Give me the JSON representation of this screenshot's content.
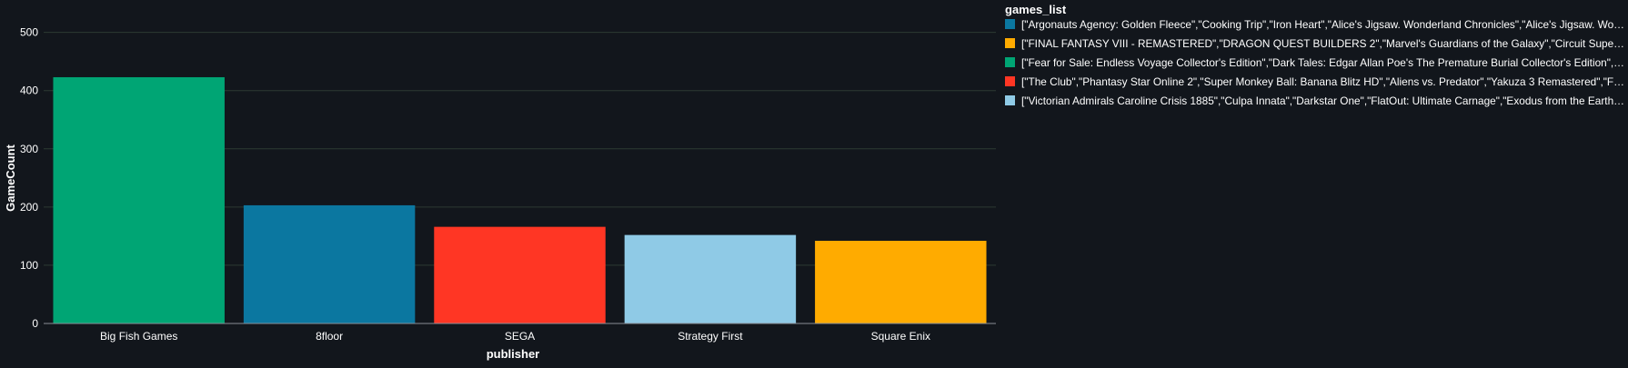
{
  "chart_data": {
    "type": "bar",
    "xlabel": "publisher",
    "ylabel": "GameCount",
    "ylim": [
      0,
      540
    ],
    "yticks": [
      0,
      100,
      200,
      300,
      400,
      500
    ],
    "grid": true,
    "categories": [
      "Big Fish Games",
      "8floor",
      "SEGA",
      "Strategy First",
      "Square Enix"
    ],
    "values": [
      423,
      203,
      166,
      152,
      142
    ],
    "bar_colors": [
      "#00a574",
      "#0b77a0",
      "#ff3624",
      "#8fcae6",
      "#ffab00"
    ],
    "legend": {
      "title": "games_list",
      "position": "top-right",
      "entries": [
        {
          "label": "[\"Argonauts Agency: Golden Fleece\",\"Cooking Trip\",\"Iron Heart\",\"Alice's Jigsaw. Wonderland Chronicles\",\"Alice's Jigsaw. Wo…",
          "color": "#0b77a0"
        },
        {
          "label": "[\"FINAL FANTASY VIII - REMASTERED\",\"DRAGON QUEST BUILDERS 2\",\"Marvel's Guardians of the Galaxy\",\"Circuit Supe…",
          "color": "#ffab00"
        },
        {
          "label": "[\"Fear for Sale: Endless Voyage Collector's Edition\",\"Dark Tales: Edgar Allan Poe's The Premature Burial Collector's Edition\",…",
          "color": "#00a574"
        },
        {
          "label": "[\"The Club\",\"Phantasy Star Online 2\",\"Super Monkey Ball: Banana Blitz HD\",\"Aliens vs. Predator\",\"Yakuza 3 Remastered\",\"F…",
          "color": "#ff3624"
        },
        {
          "label": "[\"Victorian Admirals Caroline Crisis 1885\",\"Culpa Innata\",\"Darkstar One\",\"FlatOut: Ultimate Carnage\",\"Exodus from the Earth…",
          "color": "#8fcae6"
        }
      ]
    }
  }
}
